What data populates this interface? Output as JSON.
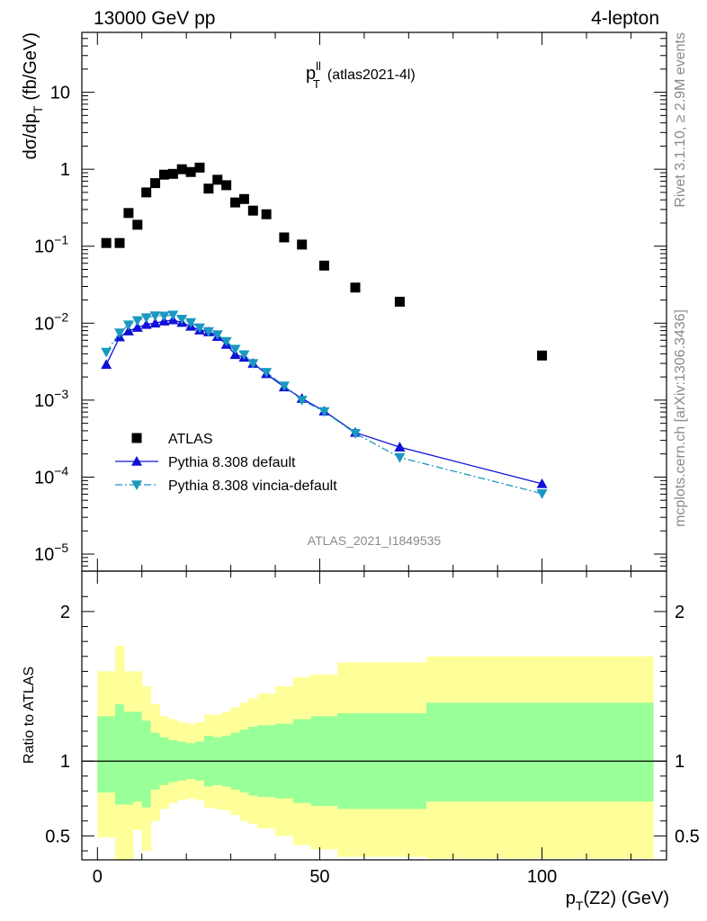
{
  "header": {
    "left": "13000 GeV pp",
    "right": "4-lepton"
  },
  "side": {
    "rivet": "Rivet 3.1.10, ≥ 2.9M events",
    "mcplots": "mcplots.cern.ch [arXiv:1306.3436]"
  },
  "chart_data": [
    {
      "type": "scatter",
      "title_main": "p",
      "title_sup": "ll",
      "title_sub": "T",
      "title_tail": "(atlas2021-4l)",
      "watermark": "ATLAS_2021_I1849535",
      "ylabel": "dσ/dp",
      "ylabel_sub": "T",
      "ylabel_unit": "(fb/GeV)",
      "yscale": "log",
      "ylim": [
        6e-06,
        60
      ],
      "xlim": [
        -3.5,
        128
      ],
      "y_ticks": [
        {
          "v": 10,
          "m": "10",
          "e": ""
        },
        {
          "v": 1,
          "m": "1",
          "e": ""
        },
        {
          "v": 0.1,
          "m": "10",
          "e": "−1"
        },
        {
          "v": 0.01,
          "m": "10",
          "e": "−2"
        },
        {
          "v": 0.001,
          "m": "10",
          "e": "−3"
        },
        {
          "v": 0.0001,
          "m": "10",
          "e": "−4"
        },
        {
          "v": 1e-05,
          "m": "10",
          "e": "−5"
        }
      ],
      "legend_placement": "lower-left",
      "series": [
        {
          "name": "ATLAS",
          "color": "#000000",
          "marker": "square",
          "x": [
            2,
            5,
            7,
            9,
            11,
            13,
            15,
            17,
            19,
            21,
            23,
            25,
            27,
            29,
            31,
            33,
            35,
            38,
            42,
            46,
            51,
            58,
            68,
            100
          ],
          "y": [
            0.11,
            0.11,
            0.27,
            0.19,
            0.5,
            0.66,
            0.85,
            0.87,
            1.0,
            0.92,
            1.05,
            0.56,
            0.73,
            0.62,
            0.37,
            0.41,
            0.29,
            0.26,
            0.13,
            0.105,
            0.056,
            0.029,
            0.019,
            0.0038
          ]
        },
        {
          "name": "Pythia 8.308 default",
          "color": "#1010d8",
          "marker": "triangle-up",
          "line": "solid",
          "x": [
            2,
            5,
            7,
            9,
            11,
            13,
            15,
            17,
            19,
            21,
            23,
            25,
            27,
            29,
            31,
            33,
            35,
            38,
            42,
            46,
            51,
            58,
            68,
            100
          ],
          "y": [
            0.0029,
            0.0066,
            0.0079,
            0.0088,
            0.0096,
            0.01,
            0.0106,
            0.011,
            0.0102,
            0.0091,
            0.0081,
            0.0077,
            0.0067,
            0.0053,
            0.0039,
            0.0036,
            0.003,
            0.0022,
            0.00148,
            0.00105,
            0.00072,
            0.00038,
            0.000245,
            8.2e-05
          ]
        },
        {
          "name": "Pythia 8.308 vincia-default",
          "color": "#1b98c0",
          "marker": "triangle-down",
          "line": "dashdot",
          "x": [
            2,
            5,
            7,
            9,
            11,
            13,
            15,
            17,
            19,
            21,
            23,
            25,
            27,
            29,
            31,
            33,
            35,
            38,
            42,
            46,
            51,
            58,
            68,
            100
          ],
          "y": [
            0.0042,
            0.0075,
            0.0095,
            0.0108,
            0.0118,
            0.0125,
            0.0124,
            0.0128,
            0.0113,
            0.0102,
            0.0087,
            0.0078,
            0.0071,
            0.0058,
            0.0046,
            0.0039,
            0.003,
            0.0023,
            0.00153,
            0.001,
            0.00071,
            0.00037,
            0.00018,
            6.1e-05
          ]
        }
      ]
    },
    {
      "type": "area",
      "ylabel": "Ratio to ATLAS",
      "xlabel": "p",
      "xlabel_sub": "T",
      "xlabel_tail": "(Z2) (GeV)",
      "xlim": [
        -3.5,
        128
      ],
      "ylim": [
        0.34,
        2.27
      ],
      "x_ticks": [
        0,
        50,
        100
      ],
      "y_ticks": [
        0.5,
        1,
        2
      ],
      "reference_line": 1,
      "bands": {
        "edges": [
          0,
          4,
          6,
          8,
          10,
          12,
          14,
          16,
          18,
          20,
          22,
          24,
          26,
          28,
          30,
          32,
          34,
          36,
          40,
          44,
          48,
          54,
          62,
          74,
          125
        ],
        "yellow_upper": [
          1.6,
          1.77,
          1.6,
          1.6,
          1.5,
          1.38,
          1.3,
          1.28,
          1.26,
          1.25,
          1.26,
          1.31,
          1.31,
          1.33,
          1.36,
          1.39,
          1.42,
          1.45,
          1.5,
          1.56,
          1.58,
          1.66,
          1.66,
          1.7
        ],
        "yellow_lower": [
          0.49,
          0.34,
          0.34,
          0.54,
          0.4,
          0.6,
          0.68,
          0.72,
          0.74,
          0.75,
          0.74,
          0.69,
          0.68,
          0.67,
          0.64,
          0.6,
          0.58,
          0.55,
          0.5,
          0.44,
          0.41,
          0.36,
          0.36,
          0.35
        ],
        "green_upper": [
          1.3,
          1.38,
          1.33,
          1.33,
          1.27,
          1.19,
          1.16,
          1.14,
          1.13,
          1.12,
          1.13,
          1.17,
          1.16,
          1.17,
          1.19,
          1.21,
          1.23,
          1.24,
          1.25,
          1.28,
          1.3,
          1.32,
          1.32,
          1.39
        ],
        "green_lower": [
          0.79,
          0.71,
          0.71,
          0.73,
          0.69,
          0.81,
          0.84,
          0.86,
          0.87,
          0.88,
          0.87,
          0.83,
          0.84,
          0.83,
          0.81,
          0.79,
          0.77,
          0.76,
          0.75,
          0.72,
          0.7,
          0.68,
          0.68,
          0.73
        ],
        "yellow_color": "#ffff99",
        "green_color": "#99ff99"
      }
    }
  ]
}
